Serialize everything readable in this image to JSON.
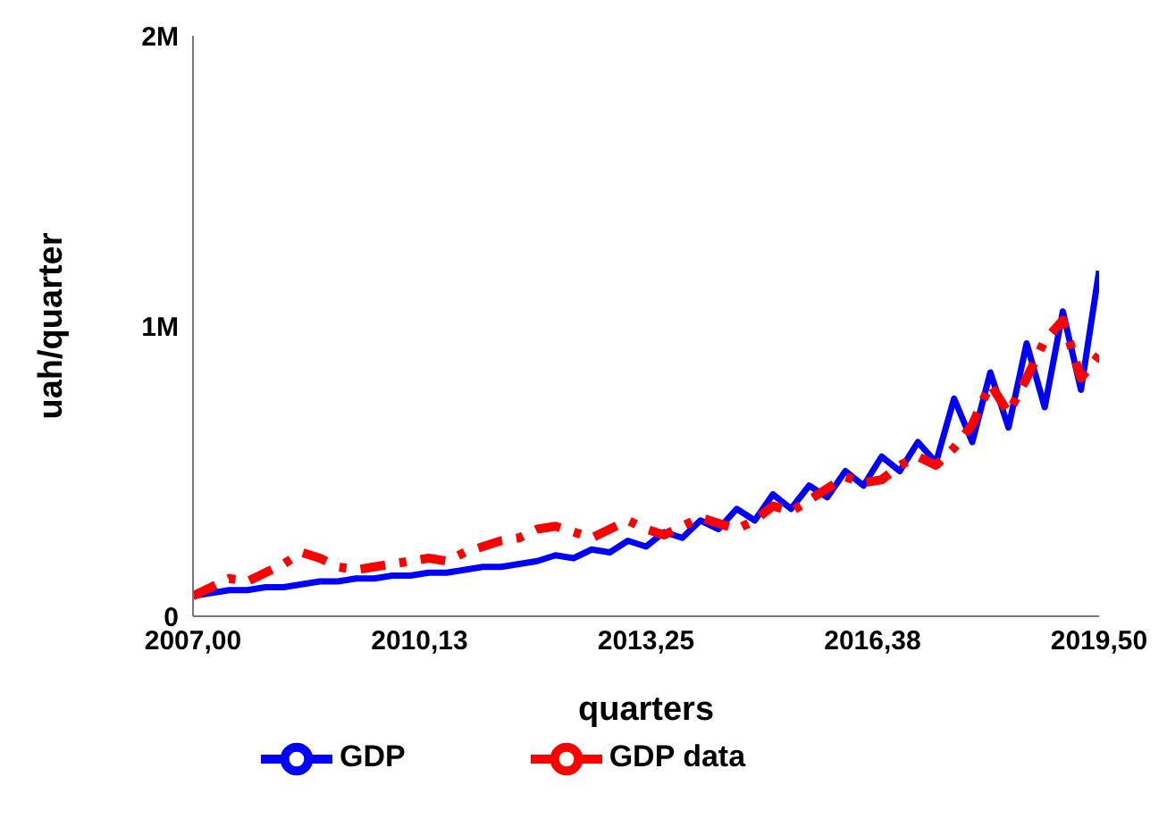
{
  "chart_data": {
    "type": "line",
    "xlabel": "quarters",
    "ylabel": "uah/quarter",
    "x": [
      2007,
      2007.25,
      2007.5,
      2007.75,
      2008,
      2008.25,
      2008.5,
      2008.75,
      2009,
      2009.25,
      2009.5,
      2009.75,
      2010,
      2010.25,
      2010.5,
      2010.75,
      2011,
      2011.25,
      2011.5,
      2011.75,
      2012,
      2012.25,
      2012.5,
      2012.75,
      2013,
      2013.25,
      2013.5,
      2013.75,
      2014,
      2014.25,
      2014.5,
      2014.75,
      2015,
      2015.25,
      2015.5,
      2015.75,
      2016,
      2016.25,
      2016.5,
      2016.75,
      2017,
      2017.25,
      2017.5,
      2017.75,
      2018,
      2018.25,
      2018.5,
      2018.75,
      2019,
      2019.25,
      2019.5
    ],
    "series": [
      {
        "name": "GDP",
        "color": "#0000ff",
        "line_style": "solid",
        "values": [
          70000,
          80000,
          90000,
          90000,
          100000,
          100000,
          110000,
          120000,
          120000,
          130000,
          130000,
          140000,
          140000,
          150000,
          150000,
          160000,
          170000,
          170000,
          180000,
          190000,
          210000,
          200000,
          230000,
          220000,
          260000,
          240000,
          290000,
          270000,
          330000,
          300000,
          370000,
          330000,
          420000,
          370000,
          450000,
          410000,
          500000,
          450000,
          550000,
          500000,
          600000,
          530000,
          750000,
          600000,
          840000,
          650000,
          940000,
          720000,
          1050000,
          780000,
          1190000
        ]
      },
      {
        "name": "GDP data",
        "color": "#ff0000",
        "line_style": "dashed",
        "values": [
          70000,
          100000,
          130000,
          120000,
          150000,
          180000,
          220000,
          200000,
          170000,
          160000,
          170000,
          180000,
          190000,
          200000,
          190000,
          220000,
          240000,
          260000,
          270000,
          300000,
          310000,
          290000,
          270000,
          300000,
          330000,
          300000,
          280000,
          310000,
          340000,
          320000,
          300000,
          330000,
          380000,
          360000,
          400000,
          440000,
          480000,
          460000,
          470000,
          520000,
          550000,
          520000,
          580000,
          660000,
          800000,
          700000,
          820000,
          950000,
          1020000,
          820000,
          900000
        ]
      }
    ],
    "xlim": [
      2007,
      2019.5
    ],
    "xticks": [
      {
        "value": 2007,
        "label": "2007,00"
      },
      {
        "value": 2010.125,
        "label": "2010,13"
      },
      {
        "value": 2013.25,
        "label": "2013,25"
      },
      {
        "value": 2016.375,
        "label": "2016,38"
      },
      {
        "value": 2019.5,
        "label": "2019,50"
      }
    ],
    "ylim": [
      0,
      2000000
    ],
    "yticks": [
      {
        "value": 0,
        "label": "0"
      },
      {
        "value": 1000000,
        "label": "1M"
      },
      {
        "value": 2000000,
        "label": "2M"
      }
    ],
    "legend": "bottom"
  }
}
